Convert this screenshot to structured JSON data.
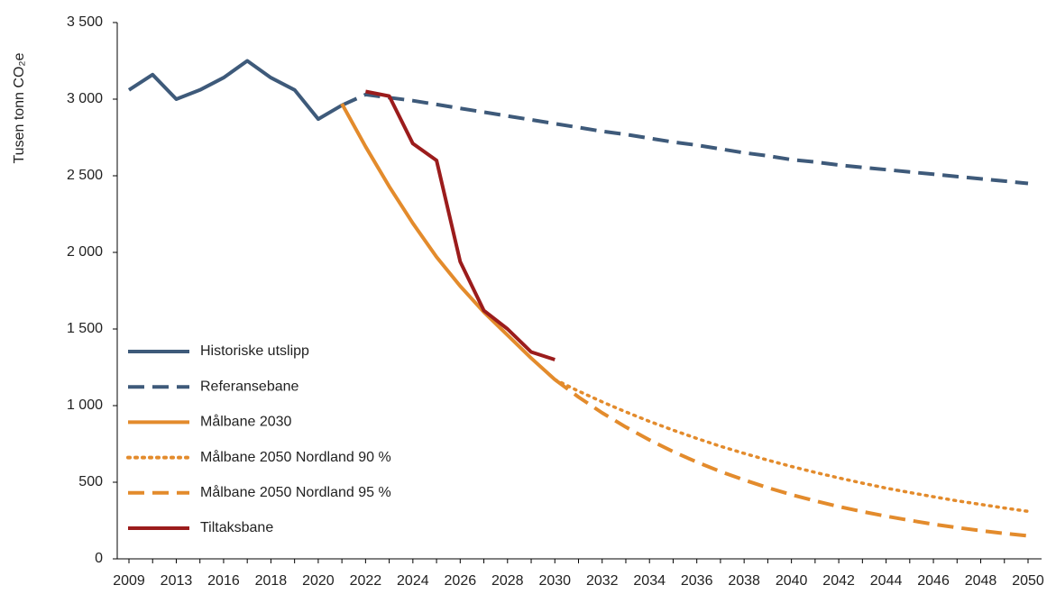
{
  "chart_data": {
    "type": "line",
    "y_label": "Tusen tonn CO₂e",
    "categories": [
      "2009",
      null,
      "2013",
      null,
      "2016",
      null,
      "2018",
      null,
      "2020",
      null,
      "2022",
      null,
      "2024",
      null,
      "2026",
      null,
      "2028",
      null,
      "2030",
      null,
      "2032",
      null,
      "2034",
      null,
      "2036",
      null,
      "2038",
      null,
      "2040",
      null,
      "2042",
      null,
      "2044",
      null,
      "2046",
      null,
      "2048",
      null,
      "2050"
    ],
    "ylim": [
      0,
      3500
    ],
    "yticks": [
      0,
      500,
      {
        "value": 1000,
        "label": "1 000"
      },
      {
        "value": 1500,
        "label": "1 500"
      },
      {
        "value": 2000,
        "label": "2 000"
      },
      {
        "value": 2500,
        "label": "2 500"
      },
      {
        "value": 3000,
        "label": "3 000"
      },
      {
        "value": 3500,
        "label": "3 500"
      }
    ],
    "legend": "left",
    "series": [
      {
        "name": "Historiske utslipp",
        "color": "#3e5a7a",
        "style": "solid",
        "values": [
          3060,
          3160,
          3000,
          3060,
          3140,
          3250,
          3140,
          3060,
          2870,
          2960,
          null,
          null,
          null,
          null,
          null,
          null,
          null,
          null,
          null,
          null,
          null,
          null,
          null,
          null,
          null,
          null,
          null,
          null,
          null,
          null,
          null,
          null,
          null,
          null,
          null,
          null,
          null,
          null,
          null
        ]
      },
      {
        "name": "Referansebane",
        "color": "#3e5a7a",
        "style": "dashed",
        "values": [
          null,
          null,
          null,
          null,
          null,
          null,
          null,
          null,
          null,
          2960,
          3030,
          3010,
          2990,
          2965,
          2940,
          2915,
          2890,
          2865,
          2840,
          2815,
          2790,
          2770,
          2745,
          2720,
          2700,
          2675,
          2650,
          2630,
          2605,
          2590,
          2570,
          2555,
          2540,
          2525,
          2510,
          2495,
          2480,
          2465,
          2450
        ]
      },
      {
        "name": "Målbane 2030",
        "color": "#e38b2c",
        "style": "solid",
        "values": [
          null,
          null,
          null,
          null,
          null,
          null,
          null,
          null,
          null,
          2970,
          2690,
          2430,
          2190,
          1970,
          1780,
          1610,
          1460,
          1310,
          1170,
          null,
          null,
          null,
          null,
          null,
          null,
          null,
          null,
          null,
          null,
          null,
          null,
          null,
          null,
          null,
          null,
          null,
          null,
          null,
          null
        ]
      },
      {
        "name": "Målbane 2050 Nordland 90 %",
        "color": "#e38b2c",
        "style": "dotted",
        "values": [
          null,
          null,
          null,
          null,
          null,
          null,
          null,
          null,
          null,
          null,
          null,
          null,
          null,
          null,
          null,
          null,
          null,
          null,
          1170,
          1095,
          1025,
          959,
          897,
          840,
          786,
          735,
          688,
          644,
          603,
          564,
          528,
          494,
          462,
          433,
          405,
          379,
          355,
          332,
          310
        ]
      },
      {
        "name": "Målbane 2050 Nordland 95 %",
        "color": "#e38b2c",
        "style": "dashed",
        "values": [
          null,
          null,
          null,
          null,
          null,
          null,
          null,
          null,
          null,
          null,
          null,
          null,
          null,
          null,
          null,
          null,
          null,
          null,
          1170,
          1056,
          953,
          860,
          776,
          700,
          632,
          570,
          515,
          464,
          419,
          378,
          341,
          308,
          278,
          251,
          226,
          204,
          184,
          166,
          150
        ]
      },
      {
        "name": "Tiltaksbane",
        "color": "#9b1c1c",
        "style": "solid",
        "values": [
          null,
          null,
          null,
          null,
          null,
          null,
          null,
          null,
          null,
          null,
          3050,
          3020,
          2710,
          2600,
          1940,
          1620,
          1500,
          1350,
          1300,
          null,
          null,
          null,
          null,
          null,
          null,
          null,
          null,
          null,
          null,
          null,
          null,
          null,
          null,
          null,
          null,
          null,
          null,
          null,
          null
        ]
      }
    ]
  }
}
